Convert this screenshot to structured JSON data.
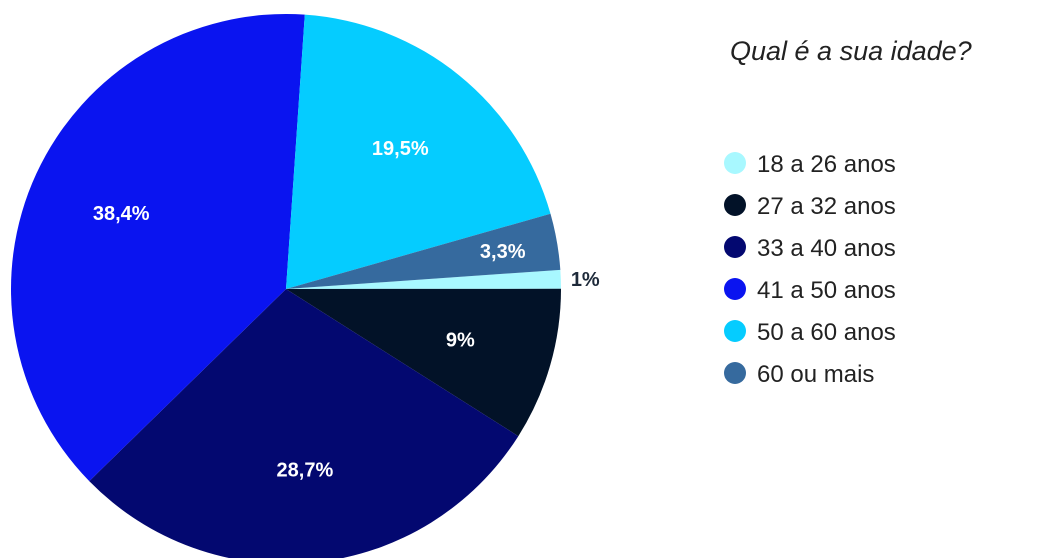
{
  "chart_data": {
    "type": "pie",
    "title": "Qual é a sua idade?",
    "categories": [
      "18 a 26 anos",
      "27 a 32 anos",
      "33 a 40 anos",
      "41 a 50 anos",
      "50 a 60 anos",
      "60 ou mais"
    ],
    "values": [
      1.1,
      9.0,
      28.7,
      38.4,
      19.5,
      3.3
    ],
    "labels": [
      "1%",
      "9%",
      "28,7%",
      "38,4%",
      "19,5%",
      "3,3%"
    ],
    "colors": [
      "#A8F8FF",
      "#021228",
      "#030870",
      "#0A14F0",
      "#05CCFF",
      "#366A9E"
    ],
    "label_colors": [
      "#1E2A3A",
      "#ffffff",
      "#ffffff",
      "#ffffff",
      "#ffffff",
      "#ffffff"
    ],
    "legend_position": "right"
  }
}
